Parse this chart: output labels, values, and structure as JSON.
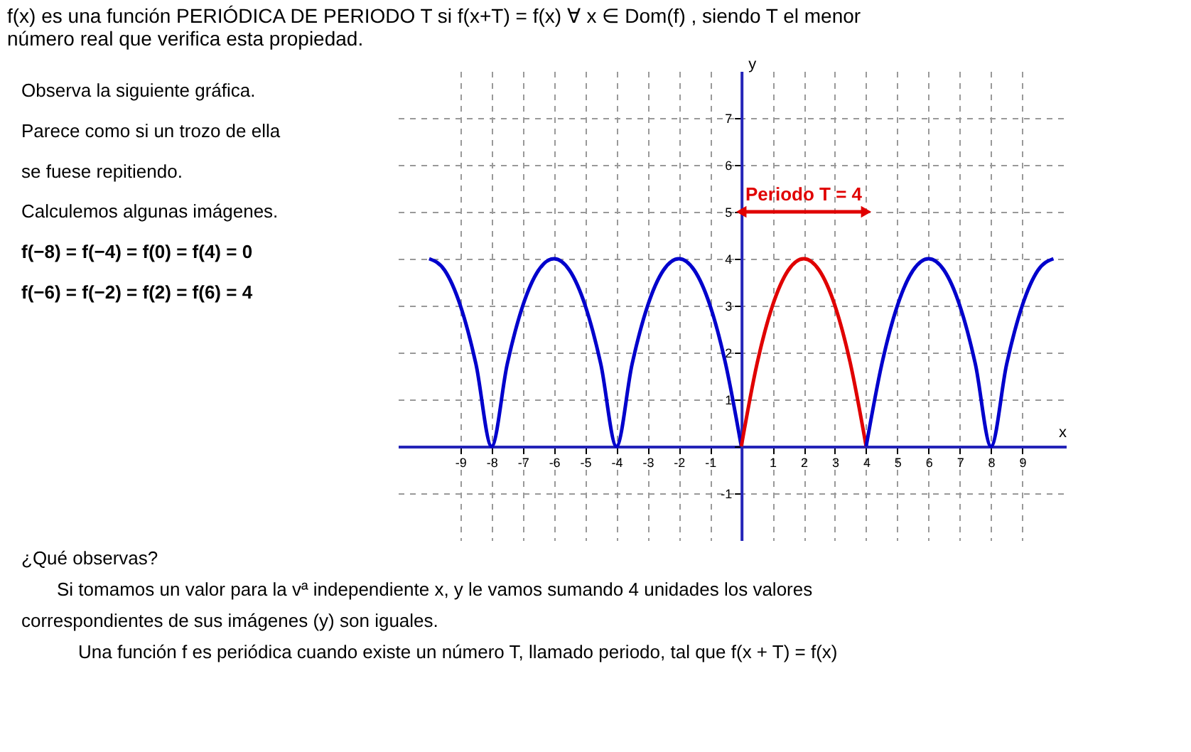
{
  "chart_data": {
    "type": "line",
    "title": "f(x) es una función PERIÓDICA DE PERIODO T si f(x+T) = f(x)   ∀ x ∈ Dom(f) , siendo T el menor número real que verifica esta propiedad.",
    "xlabel": "x",
    "ylabel": "y",
    "xlim": [
      -11,
      10.4
    ],
    "ylim": [
      -2,
      8
    ],
    "xticks": [
      -9,
      -8,
      -7,
      -6,
      -5,
      -4,
      -3,
      -2,
      -1,
      {
        "value": 0,
        "label": null
      },
      1,
      2,
      3,
      4,
      5,
      6,
      7,
      8,
      9
    ],
    "yticks": [
      -1,
      {
        "value": 0,
        "label": null
      },
      1,
      2,
      3,
      4,
      5,
      6,
      7
    ],
    "grid": true,
    "marker": "none",
    "line_style": "solid",
    "series": [
      {
        "color": "#0000cc",
        "x": [
          -10,
          -9.5,
          -9,
          -8.5,
          -8,
          -7.5,
          -7,
          -6.5,
          -6,
          -5.5,
          -5,
          -4.5,
          -4,
          -3.5,
          -3,
          -2.5,
          -2,
          -1.5,
          -1,
          -0.5,
          0
        ],
        "values": [
          4,
          3.75,
          3,
          1.75,
          0,
          1.75,
          3,
          3.75,
          4,
          3.75,
          3,
          1.75,
          0,
          1.75,
          3,
          3.75,
          4,
          3.75,
          3,
          1.75,
          0
        ]
      },
      {
        "color": "#e00000",
        "x": [
          0,
          0.5,
          1,
          1.5,
          2,
          2.5,
          3,
          3.5,
          4
        ],
        "values": [
          0,
          1.75,
          3,
          3.75,
          4,
          3.75,
          3,
          1.75,
          0
        ]
      },
      {
        "color": "#0000cc",
        "x": [
          4,
          4.5,
          5,
          5.5,
          6,
          6.5,
          7,
          7.5,
          8,
          8.5,
          9,
          9.5,
          10
        ],
        "values": [
          0,
          1.75,
          3,
          3.75,
          4,
          3.75,
          3,
          1.75,
          0,
          1.75,
          3,
          3.75,
          4
        ]
      },
      {
        "color": "#e00000",
        "x": [
          0,
          4
        ],
        "values": [
          5,
          5
        ],
        "marker": "triangle"
      }
    ],
    "annotations": [
      {
        "text": "Periodo T = 4",
        "x": 2,
        "y": 5
      },
      "Observa la siguiente gráfica.",
      "Parece como si un trozo de ella",
      "se fuese repitiendo.",
      "Calculemos algunas imágenes.",
      "f(−8) = f(−4) = f(0) = f(4) = 0",
      "f(−6) = f(−2) = f(2) = f(6) = 4",
      "¿Qué observas?",
      "Si tomamos un valor para la vª independiente x, y le vamos sumando 4 unidades los valores",
      "correspondientes de sus imágenes (y) son iguales.",
      "Una función f es periódica cuando existe un número T, llamado periodo, tal que f(x + T) = f(x)"
    ]
  }
}
